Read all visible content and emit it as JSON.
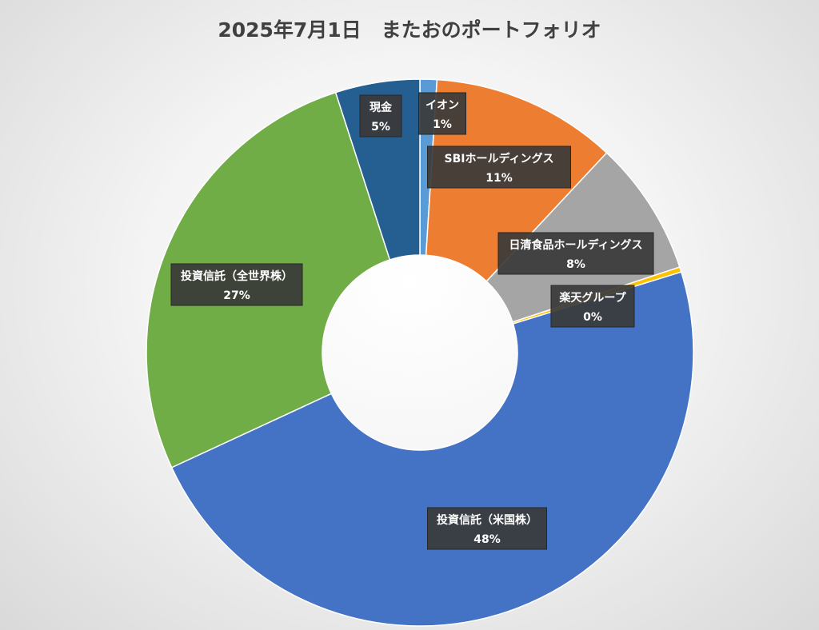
{
  "chart_data": {
    "type": "pie",
    "variant": "doughnut",
    "title": "2025年7月1日　またおのポートフォリオ",
    "legend": "none",
    "slices": [
      {
        "name": "イオン",
        "value": 1,
        "label": "1%",
        "color": "#5b9bd5"
      },
      {
        "name": "SBIホールディングス",
        "value": 11,
        "label": "11%",
        "color": "#ed7d31"
      },
      {
        "name": "日清食品ホールディングス",
        "value": 8,
        "label": "8%",
        "color": "#a5a5a5"
      },
      {
        "name": "楽天グループ",
        "value": 0.3,
        "label": "0%",
        "color": "#ffc000"
      },
      {
        "name": "投資信託（米国株）",
        "value": 48,
        "label": "48%",
        "color": "#4472c4"
      },
      {
        "name": "投資信託（全世界株）",
        "value": 27,
        "label": "27%",
        "color": "#70ad47"
      },
      {
        "name": "現金",
        "value": 5,
        "label": "5%",
        "color": "#255e91"
      }
    ]
  }
}
